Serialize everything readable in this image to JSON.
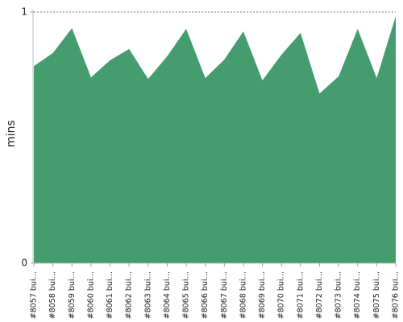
{
  "chart_data": {
    "type": "area",
    "y_label": "mins",
    "categories": [
      "#8057 bui…",
      "#8058 bui…",
      "#8059 bui…",
      "#8060 bui…",
      "#8061 bui…",
      "#8062 bui…",
      "#8063 bui…",
      "#8064 bui…",
      "#8065 bui…",
      "#8066 bui…",
      "#8067 bui…",
      "#8068 bui…",
      "#8069 bui…",
      "#8070 bui…",
      "#8071 bui…",
      "#8072 bui…",
      "#8073 bui…",
      "#8074 bui…",
      "#8075 bui…",
      "#8076 bui…"
    ],
    "values": [
      0.785,
      0.837,
      0.936,
      0.74,
      0.808,
      0.853,
      0.734,
      0.824,
      0.933,
      0.737,
      0.811,
      0.923,
      0.728,
      0.83,
      0.917,
      0.676,
      0.744,
      0.933,
      0.737,
      0.984
    ],
    "color": "#459c6e",
    "ylim": [
      0,
      1
    ],
    "yticks": [
      0,
      1
    ],
    "grid": true
  }
}
